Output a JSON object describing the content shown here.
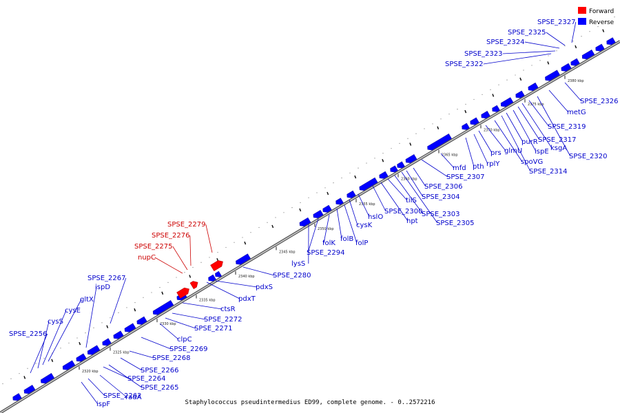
{
  "caption": "Staphylococcus pseudintermedius ED99, complete genome. - 0..2572216",
  "legend": [
    {
      "label": "Forward",
      "color": "#ff0000"
    },
    {
      "label": "Reverse",
      "color": "#0000ff"
    }
  ],
  "colors": {
    "forward": "#ff0000",
    "reverse": "#0000ff",
    "label_forward": "#cc0000",
    "label_reverse": "#0000cc",
    "backbone": "#888888"
  },
  "kbp_marks": [
    "2320 kbp",
    "2325 kbp",
    "2330 kbp",
    "2335 kbp",
    "2340 kbp",
    "2345 kbp",
    "2350 kbp",
    "2355 kbp",
    "2360 kbp",
    "2365 kbp",
    "2370 kbp",
    "2375 kbp",
    "2380 kbp"
  ],
  "genes": [
    {
      "label": "SPSE_2256",
      "strand": "reverse"
    },
    {
      "label": "cysS",
      "strand": "reverse"
    },
    {
      "label": "cysE",
      "strand": "reverse"
    },
    {
      "label": "gltX",
      "strand": "reverse"
    },
    {
      "label": "ispD",
      "strand": "reverse"
    },
    {
      "label": "SPSE_2267",
      "strand": "reverse"
    },
    {
      "label": "ispF",
      "strand": "reverse"
    },
    {
      "label": "SPSE_2262",
      "strand": "reverse"
    },
    {
      "label": "radA",
      "strand": "reverse"
    },
    {
      "label": "SPSE_2264",
      "strand": "reverse"
    },
    {
      "label": "SPSE_2265",
      "strand": "reverse"
    },
    {
      "label": "SPSE_2266",
      "strand": "reverse"
    },
    {
      "label": "SPSE_2268",
      "strand": "reverse"
    },
    {
      "label": "SPSE_2269",
      "strand": "reverse"
    },
    {
      "label": "clpC",
      "strand": "reverse"
    },
    {
      "label": "SPSE_2271",
      "strand": "reverse"
    },
    {
      "label": "SPSE_2272",
      "strand": "reverse"
    },
    {
      "label": "ctsR",
      "strand": "reverse"
    },
    {
      "label": "pdxT",
      "strand": "reverse"
    },
    {
      "label": "pdxS",
      "strand": "reverse"
    },
    {
      "label": "SPSE_2280",
      "strand": "reverse"
    },
    {
      "label": "nupC",
      "strand": "forward"
    },
    {
      "label": "SPSE_2275",
      "strand": "forward"
    },
    {
      "label": "SPSE_2276",
      "strand": "forward"
    },
    {
      "label": "SPSE_2279",
      "strand": "forward"
    },
    {
      "label": "lysS",
      "strand": "reverse"
    },
    {
      "label": "SPSE_2294",
      "strand": "reverse"
    },
    {
      "label": "folK",
      "strand": "reverse"
    },
    {
      "label": "folB",
      "strand": "reverse"
    },
    {
      "label": "folP",
      "strand": "reverse"
    },
    {
      "label": "cysK",
      "strand": "reverse"
    },
    {
      "label": "hslO",
      "strand": "reverse"
    },
    {
      "label": "SPSE_2300",
      "strand": "reverse"
    },
    {
      "label": "hpt",
      "strand": "reverse"
    },
    {
      "label": "tilS",
      "strand": "reverse"
    },
    {
      "label": "SPSE_2303",
      "strand": "reverse"
    },
    {
      "label": "SPSE_2305",
      "strand": "reverse"
    },
    {
      "label": "SPSE_2304",
      "strand": "reverse"
    },
    {
      "label": "SPSE_2306",
      "strand": "reverse"
    },
    {
      "label": "SPSE_2307",
      "strand": "reverse"
    },
    {
      "label": "mfd",
      "strand": "reverse"
    },
    {
      "label": "pth",
      "strand": "reverse"
    },
    {
      "label": "rplY",
      "strand": "reverse"
    },
    {
      "label": "prs",
      "strand": "reverse"
    },
    {
      "label": "glmU",
      "strand": "reverse"
    },
    {
      "label": "spoVG",
      "strand": "reverse"
    },
    {
      "label": "SPSE_2314",
      "strand": "reverse"
    },
    {
      "label": "purR",
      "strand": "reverse"
    },
    {
      "label": "ispE",
      "strand": "reverse"
    },
    {
      "label": "SPSE_2317",
      "strand": "reverse"
    },
    {
      "label": "ksgA",
      "strand": "reverse"
    },
    {
      "label": "SPSE_2319",
      "strand": "reverse"
    },
    {
      "label": "SPSE_2320",
      "strand": "reverse"
    },
    {
      "label": "metG",
      "strand": "reverse"
    },
    {
      "label": "SPSE_2326",
      "strand": "reverse"
    },
    {
      "label": "SPSE_2322",
      "strand": "reverse"
    },
    {
      "label": "SPSE_2323",
      "strand": "reverse"
    },
    {
      "label": "SPSE_2324",
      "strand": "reverse"
    },
    {
      "label": "SPSE_2325",
      "strand": "reverse"
    },
    {
      "label": "SPSE_2327",
      "strand": "reverse"
    }
  ]
}
